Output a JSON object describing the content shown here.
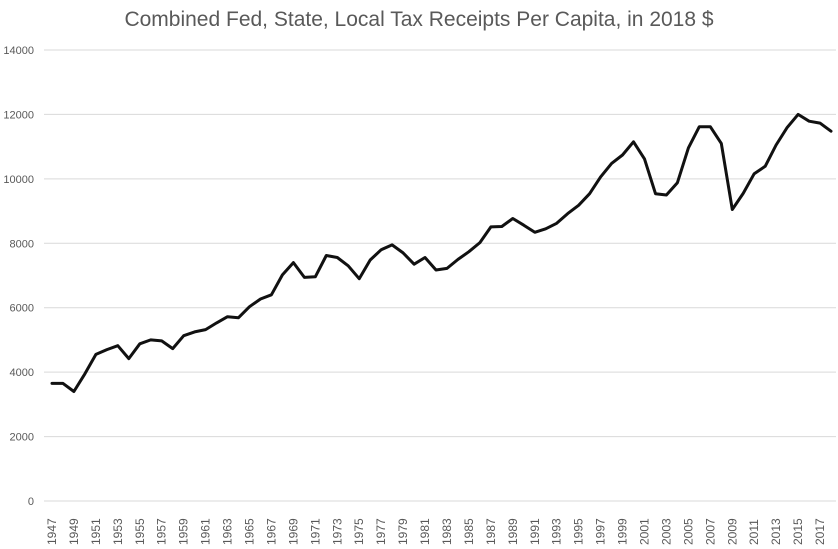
{
  "chart_data": {
    "type": "line",
    "title": "Combined Fed, State, Local Tax Receipts Per Capita, in 2018 $",
    "xlabel": "",
    "ylabel": "",
    "ylim": [
      0,
      14000
    ],
    "yticks": [
      0,
      2000,
      4000,
      6000,
      8000,
      10000,
      12000,
      14000
    ],
    "ytick_labels": [
      "0",
      "2000",
      "4000",
      "6000",
      "8000",
      "10000",
      "12000",
      "14000"
    ],
    "xtick_labels": [
      "1947",
      "1949",
      "1951",
      "1953",
      "1955",
      "1957",
      "1959",
      "1961",
      "1963",
      "1965",
      "1967",
      "1969",
      "1971",
      "1973",
      "1975",
      "1977",
      "1979",
      "1981",
      "1983",
      "1985",
      "1987",
      "1989",
      "1991",
      "1993",
      "1995",
      "1997",
      "1999",
      "2001",
      "2003",
      "2005",
      "2007",
      "2009",
      "2011",
      "2013",
      "2015",
      "2017"
    ],
    "grid": true,
    "line_color": "#111111",
    "series": [
      {
        "x": [
          1947,
          1948,
          1949,
          1950,
          1951,
          1952,
          1953,
          1954,
          1955,
          1956,
          1957,
          1958,
          1959,
          1960,
          1961,
          1962,
          1963,
          1964,
          1965,
          1966,
          1967,
          1968,
          1969,
          1970,
          1971,
          1972,
          1973,
          1974,
          1975,
          1976,
          1977,
          1978,
          1979,
          1980,
          1981,
          1982,
          1983,
          1984,
          1985,
          1986,
          1987,
          1988,
          1989,
          1990,
          1991,
          1992,
          1993,
          1994,
          1995,
          1996,
          1997,
          1998,
          1999,
          2000,
          2001,
          2002,
          2003,
          2004,
          2005,
          2006,
          2007,
          2008,
          2009,
          2010,
          2011,
          2012,
          2013,
          2014,
          2015,
          2016,
          2017,
          2018
        ],
        "values": [
          3650,
          3650,
          3400,
          3950,
          4550,
          4700,
          4820,
          4420,
          4880,
          5000,
          4970,
          4730,
          5130,
          5250,
          5320,
          5530,
          5720,
          5690,
          6030,
          6270,
          6400,
          7020,
          7400,
          6940,
          6960,
          7620,
          7560,
          7300,
          6900,
          7480,
          7800,
          7950,
          7700,
          7350,
          7560,
          7170,
          7220,
          7500,
          7740,
          8020,
          8510,
          8520,
          8770,
          8560,
          8340,
          8450,
          8620,
          8920,
          9180,
          9540,
          10060,
          10480,
          10740,
          11150,
          10620,
          9540,
          9500,
          9880,
          10960,
          11620,
          11620,
          11100,
          9050,
          9550,
          10160,
          10390,
          11050,
          11590,
          12000,
          11790,
          11730,
          11480
        ]
      }
    ]
  }
}
